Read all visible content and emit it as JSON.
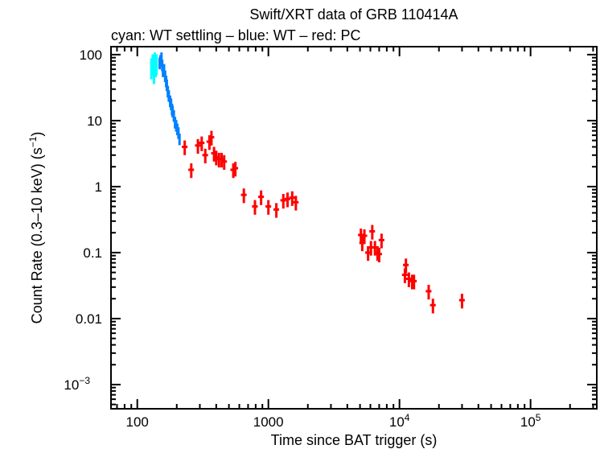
{
  "chart_data": {
    "type": "scatter",
    "title": "Swift/XRT data of GRB 110414A",
    "subtitle": "cyan: WT settling – blue: WT – red: PC",
    "xlabel": "Time since BAT trigger (s)",
    "ylabel": "Count Rate (0.3–10 keV) (s",
    "ylabel_sup": "−1",
    "ylabel_end": ")",
    "xscale": "log",
    "yscale": "log",
    "xlim": [
      63,
      320000
    ],
    "ylim": [
      0.00043,
      132
    ],
    "grid": false,
    "x_ticks": [
      {
        "value": 100,
        "label": "100",
        "sup": ""
      },
      {
        "value": 1000,
        "label": "1000",
        "sup": ""
      },
      {
        "value": 10000,
        "label": "10",
        "sup": "4"
      },
      {
        "value": 100000,
        "label": "10",
        "sup": "5"
      }
    ],
    "y_ticks": [
      {
        "value": 100,
        "label": "100",
        "sup": ""
      },
      {
        "value": 10,
        "label": "10",
        "sup": ""
      },
      {
        "value": 1,
        "label": "1",
        "sup": ""
      },
      {
        "value": 0.1,
        "label": "0.1",
        "sup": ""
      },
      {
        "value": 0.01,
        "label": "0.01",
        "sup": ""
      },
      {
        "value": 0.001,
        "label": "10",
        "sup": "−3"
      }
    ],
    "series": [
      {
        "color": "#00ffff",
        "xerr_frac": 0.01,
        "yerr_frac": 0.35,
        "points": [
          [
            128,
            65
          ],
          [
            131,
            75
          ],
          [
            134,
            55
          ],
          [
            136,
            80
          ],
          [
            138,
            70
          ],
          [
            140,
            75
          ]
        ]
      },
      {
        "color": "#0080ff",
        "xerr_frac": 0.01,
        "yerr_frac": 0.2,
        "points": [
          [
            148,
            75
          ],
          [
            150,
            82
          ],
          [
            153,
            90
          ],
          [
            155,
            70
          ],
          [
            157,
            57
          ],
          [
            160,
            60
          ],
          [
            163,
            48
          ],
          [
            166,
            40
          ],
          [
            168,
            35
          ],
          [
            171,
            28
          ],
          [
            174,
            24
          ],
          [
            178,
            20
          ],
          [
            181,
            18
          ],
          [
            184,
            15
          ],
          [
            186,
            14
          ],
          [
            190,
            12
          ],
          [
            194,
            9.5
          ],
          [
            198,
            8.5
          ],
          [
            202,
            7.5
          ],
          [
            206,
            6.6
          ],
          [
            210,
            5.3
          ]
        ]
      },
      {
        "color": "#ff0000",
        "xerr_frac": 0.05,
        "yerr_frac": 0.25,
        "points": [
          [
            230,
            4.0
          ],
          [
            258,
            1.8
          ],
          [
            290,
            4.2
          ],
          [
            310,
            4.6
          ],
          [
            330,
            3.0
          ],
          [
            355,
            4.8
          ],
          [
            368,
            5.6
          ],
          [
            385,
            3.2
          ],
          [
            400,
            2.8
          ],
          [
            420,
            2.6
          ],
          [
            440,
            2.6
          ],
          [
            460,
            2.4
          ],
          [
            540,
            1.8
          ],
          [
            560,
            1.9
          ],
          [
            650,
            0.75
          ],
          [
            790,
            0.5
          ],
          [
            880,
            0.7
          ],
          [
            1000,
            0.5
          ],
          [
            1150,
            0.45
          ],
          [
            1300,
            0.62
          ],
          [
            1400,
            0.65
          ],
          [
            1520,
            0.68
          ],
          [
            1620,
            0.58
          ],
          [
            5080,
            0.185
          ],
          [
            5200,
            0.14
          ],
          [
            5400,
            0.18
          ],
          [
            5760,
            0.1
          ],
          [
            6060,
            0.12
          ],
          [
            6200,
            0.21
          ],
          [
            6500,
            0.12
          ],
          [
            6800,
            0.1
          ],
          [
            7000,
            0.095
          ],
          [
            7300,
            0.155
          ],
          [
            11000,
            0.046
          ],
          [
            11200,
            0.065
          ],
          [
            11800,
            0.04
          ],
          [
            12500,
            0.037
          ],
          [
            12900,
            0.037
          ],
          [
            16700,
            0.026
          ],
          [
            18000,
            0.016
          ],
          [
            30000,
            0.019
          ]
        ]
      }
    ]
  }
}
